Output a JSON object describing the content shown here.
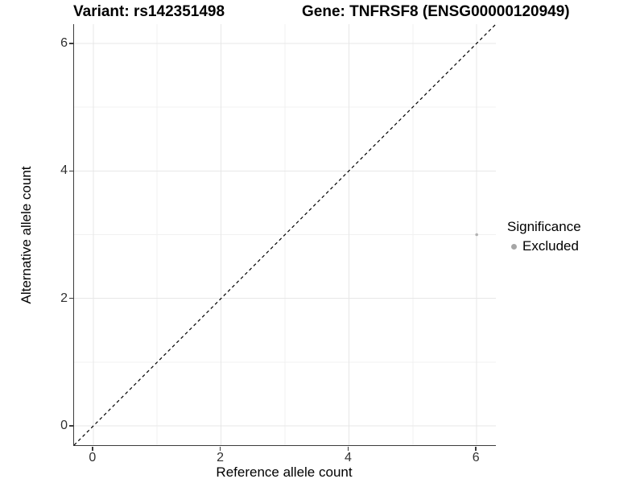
{
  "chart_data": {
    "type": "scatter",
    "titles": {
      "variant": "Variant: rs142351498",
      "gene": "Gene: TNFRSF8 (ENSG00000120949)"
    },
    "xlabel": "Reference allele count",
    "ylabel": "Alternative allele count",
    "xlim": [
      -0.3,
      6.3
    ],
    "ylim": [
      -0.3,
      6.3
    ],
    "x_major_ticks": [
      0,
      2,
      4,
      6
    ],
    "y_major_ticks": [
      0,
      2,
      4,
      6
    ],
    "x_minor_ticks": [
      1,
      3,
      5
    ],
    "y_minor_ticks": [
      1,
      3,
      5
    ],
    "grid": "major and minor, light gray on white",
    "identity_line": {
      "equation": "y = x",
      "style": "dashed",
      "color": "#000000"
    },
    "series": [
      {
        "name": "Excluded",
        "color": "#b2b2b2",
        "point_radius_px": 1.8,
        "points": [
          {
            "x": 6,
            "y": 3
          }
        ]
      }
    ],
    "legend": {
      "title": "Significance",
      "position": "right",
      "items": [
        {
          "label": "Excluded",
          "color": "#a6a6a6"
        }
      ]
    },
    "colors": {
      "background": "#ffffff",
      "axis_line": "#3c3c3c",
      "tick_text": "#303030",
      "grid_major": "#e7e7e7",
      "grid_minor": "#f1f1f1"
    }
  }
}
